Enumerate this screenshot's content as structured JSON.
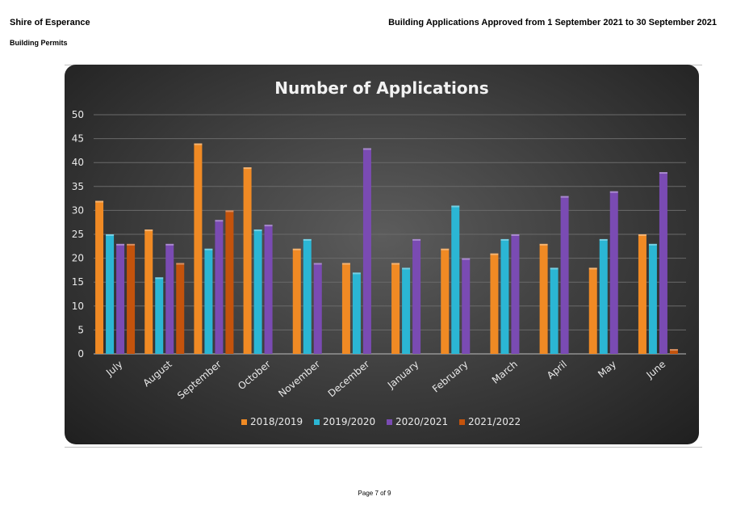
{
  "header": {
    "org_name": "Shire of Esperance",
    "section": "Building Permits",
    "report_title": "Building Applications Approved from 1 September 2021 to 30 September 2021"
  },
  "footer": {
    "page_label": "Page 7 of 9"
  },
  "chart_data": {
    "type": "bar",
    "title": "Number of Applications",
    "xlabel": "",
    "ylabel": "",
    "ylim": [
      0,
      50
    ],
    "yticks": [
      0,
      5,
      10,
      15,
      20,
      25,
      30,
      35,
      40,
      45,
      50
    ],
    "grid": true,
    "legend_position": "bottom",
    "categories": [
      "July",
      "August",
      "September",
      "October",
      "November",
      "December",
      "January",
      "February",
      "March",
      "April",
      "May",
      "June"
    ],
    "series": [
      {
        "name": "2018/2019",
        "color": "#f08a24",
        "values": [
          32,
          26,
          44,
          39,
          22,
          19,
          19,
          22,
          21,
          23,
          18,
          25
        ]
      },
      {
        "name": "2019/2020",
        "color": "#2bb6d4",
        "values": [
          25,
          16,
          22,
          26,
          24,
          17,
          18,
          31,
          24,
          18,
          24,
          23
        ]
      },
      {
        "name": "2020/2021",
        "color": "#7a4bb3",
        "values": [
          23,
          23,
          28,
          27,
          19,
          43,
          24,
          20,
          25,
          33,
          34,
          38
        ]
      },
      {
        "name": "2021/2022",
        "color": "#c4530c",
        "values": [
          23,
          19,
          30,
          null,
          null,
          null,
          null,
          null,
          null,
          null,
          null,
          1
        ]
      }
    ]
  }
}
